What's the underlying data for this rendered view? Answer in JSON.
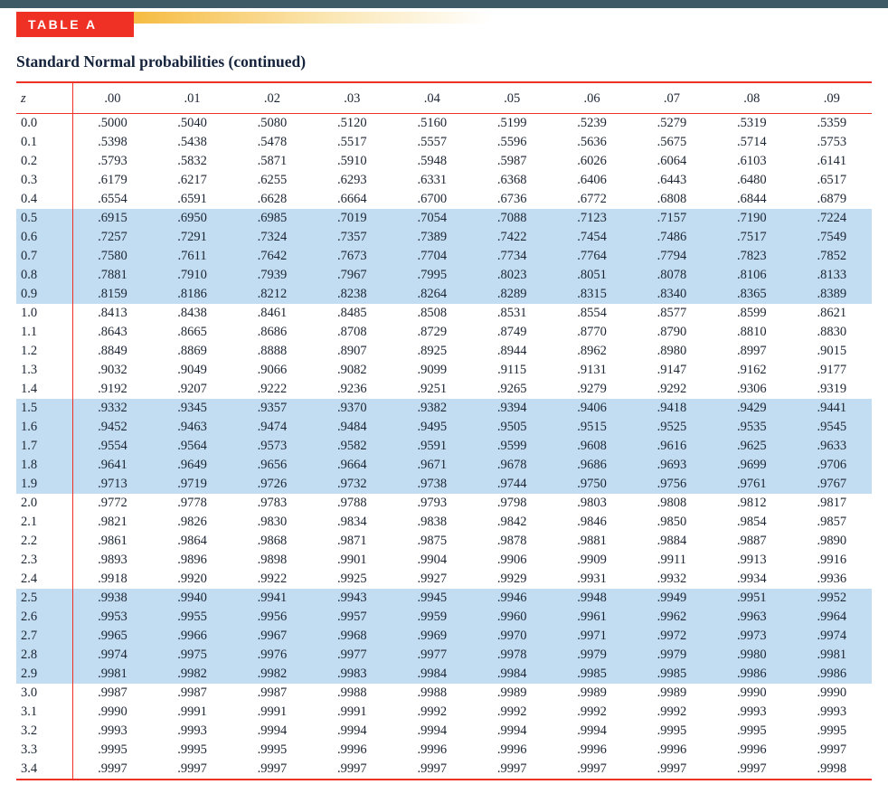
{
  "banner": {
    "label": "TABLE A"
  },
  "title": "Standard Normal probabilities (continued)",
  "colors": {
    "top_bar": "#3e5a66",
    "accent_red": "#ee3124",
    "band_blue": "#c2ddf1",
    "gradient_gold": "#f6bc42",
    "title_color": "#15233c",
    "table_text": "#1c2533"
  },
  "chart_data": {
    "type": "table",
    "title": "Standard Normal probabilities (continued)",
    "corner_label": "z",
    "columns": [
      ".00",
      ".01",
      ".02",
      ".03",
      ".04",
      ".05",
      ".06",
      ".07",
      ".08",
      ".09"
    ],
    "shaded_z_groups": [
      "0.5-0.9",
      "1.5-1.9",
      "2.5-2.9"
    ],
    "rows": [
      {
        "z": "0.0",
        "values": [
          ".5000",
          ".5040",
          ".5080",
          ".5120",
          ".5160",
          ".5199",
          ".5239",
          ".5279",
          ".5319",
          ".5359"
        ]
      },
      {
        "z": "0.1",
        "values": [
          ".5398",
          ".5438",
          ".5478",
          ".5517",
          ".5557",
          ".5596",
          ".5636",
          ".5675",
          ".5714",
          ".5753"
        ]
      },
      {
        "z": "0.2",
        "values": [
          ".5793",
          ".5832",
          ".5871",
          ".5910",
          ".5948",
          ".5987",
          ".6026",
          ".6064",
          ".6103",
          ".6141"
        ]
      },
      {
        "z": "0.3",
        "values": [
          ".6179",
          ".6217",
          ".6255",
          ".6293",
          ".6331",
          ".6368",
          ".6406",
          ".6443",
          ".6480",
          ".6517"
        ]
      },
      {
        "z": "0.4",
        "values": [
          ".6554",
          ".6591",
          ".6628",
          ".6664",
          ".6700",
          ".6736",
          ".6772",
          ".6808",
          ".6844",
          ".6879"
        ]
      },
      {
        "z": "0.5",
        "values": [
          ".6915",
          ".6950",
          ".6985",
          ".7019",
          ".7054",
          ".7088",
          ".7123",
          ".7157",
          ".7190",
          ".7224"
        ]
      },
      {
        "z": "0.6",
        "values": [
          ".7257",
          ".7291",
          ".7324",
          ".7357",
          ".7389",
          ".7422",
          ".7454",
          ".7486",
          ".7517",
          ".7549"
        ]
      },
      {
        "z": "0.7",
        "values": [
          ".7580",
          ".7611",
          ".7642",
          ".7673",
          ".7704",
          ".7734",
          ".7764",
          ".7794",
          ".7823",
          ".7852"
        ]
      },
      {
        "z": "0.8",
        "values": [
          ".7881",
          ".7910",
          ".7939",
          ".7967",
          ".7995",
          ".8023",
          ".8051",
          ".8078",
          ".8106",
          ".8133"
        ]
      },
      {
        "z": "0.9",
        "values": [
          ".8159",
          ".8186",
          ".8212",
          ".8238",
          ".8264",
          ".8289",
          ".8315",
          ".8340",
          ".8365",
          ".8389"
        ]
      },
      {
        "z": "1.0",
        "values": [
          ".8413",
          ".8438",
          ".8461",
          ".8485",
          ".8508",
          ".8531",
          ".8554",
          ".8577",
          ".8599",
          ".8621"
        ]
      },
      {
        "z": "1.1",
        "values": [
          ".8643",
          ".8665",
          ".8686",
          ".8708",
          ".8729",
          ".8749",
          ".8770",
          ".8790",
          ".8810",
          ".8830"
        ]
      },
      {
        "z": "1.2",
        "values": [
          ".8849",
          ".8869",
          ".8888",
          ".8907",
          ".8925",
          ".8944",
          ".8962",
          ".8980",
          ".8997",
          ".9015"
        ]
      },
      {
        "z": "1.3",
        "values": [
          ".9032",
          ".9049",
          ".9066",
          ".9082",
          ".9099",
          ".9115",
          ".9131",
          ".9147",
          ".9162",
          ".9177"
        ]
      },
      {
        "z": "1.4",
        "values": [
          ".9192",
          ".9207",
          ".9222",
          ".9236",
          ".9251",
          ".9265",
          ".9279",
          ".9292",
          ".9306",
          ".9319"
        ]
      },
      {
        "z": "1.5",
        "values": [
          ".9332",
          ".9345",
          ".9357",
          ".9370",
          ".9382",
          ".9394",
          ".9406",
          ".9418",
          ".9429",
          ".9441"
        ]
      },
      {
        "z": "1.6",
        "values": [
          ".9452",
          ".9463",
          ".9474",
          ".9484",
          ".9495",
          ".9505",
          ".9515",
          ".9525",
          ".9535",
          ".9545"
        ]
      },
      {
        "z": "1.7",
        "values": [
          ".9554",
          ".9564",
          ".9573",
          ".9582",
          ".9591",
          ".9599",
          ".9608",
          ".9616",
          ".9625",
          ".9633"
        ]
      },
      {
        "z": "1.8",
        "values": [
          ".9641",
          ".9649",
          ".9656",
          ".9664",
          ".9671",
          ".9678",
          ".9686",
          ".9693",
          ".9699",
          ".9706"
        ]
      },
      {
        "z": "1.9",
        "values": [
          ".9713",
          ".9719",
          ".9726",
          ".9732",
          ".9738",
          ".9744",
          ".9750",
          ".9756",
          ".9761",
          ".9767"
        ]
      },
      {
        "z": "2.0",
        "values": [
          ".9772",
          ".9778",
          ".9783",
          ".9788",
          ".9793",
          ".9798",
          ".9803",
          ".9808",
          ".9812",
          ".9817"
        ]
      },
      {
        "z": "2.1",
        "values": [
          ".9821",
          ".9826",
          ".9830",
          ".9834",
          ".9838",
          ".9842",
          ".9846",
          ".9850",
          ".9854",
          ".9857"
        ]
      },
      {
        "z": "2.2",
        "values": [
          ".9861",
          ".9864",
          ".9868",
          ".9871",
          ".9875",
          ".9878",
          ".9881",
          ".9884",
          ".9887",
          ".9890"
        ]
      },
      {
        "z": "2.3",
        "values": [
          ".9893",
          ".9896",
          ".9898",
          ".9901",
          ".9904",
          ".9906",
          ".9909",
          ".9911",
          ".9913",
          ".9916"
        ]
      },
      {
        "z": "2.4",
        "values": [
          ".9918",
          ".9920",
          ".9922",
          ".9925",
          ".9927",
          ".9929",
          ".9931",
          ".9932",
          ".9934",
          ".9936"
        ]
      },
      {
        "z": "2.5",
        "values": [
          ".9938",
          ".9940",
          ".9941",
          ".9943",
          ".9945",
          ".9946",
          ".9948",
          ".9949",
          ".9951",
          ".9952"
        ]
      },
      {
        "z": "2.6",
        "values": [
          ".9953",
          ".9955",
          ".9956",
          ".9957",
          ".9959",
          ".9960",
          ".9961",
          ".9962",
          ".9963",
          ".9964"
        ]
      },
      {
        "z": "2.7",
        "values": [
          ".9965",
          ".9966",
          ".9967",
          ".9968",
          ".9969",
          ".9970",
          ".9971",
          ".9972",
          ".9973",
          ".9974"
        ]
      },
      {
        "z": "2.8",
        "values": [
          ".9974",
          ".9975",
          ".9976",
          ".9977",
          ".9977",
          ".9978",
          ".9979",
          ".9979",
          ".9980",
          ".9981"
        ]
      },
      {
        "z": "2.9",
        "values": [
          ".9981",
          ".9982",
          ".9982",
          ".9983",
          ".9984",
          ".9984",
          ".9985",
          ".9985",
          ".9986",
          ".9986"
        ]
      },
      {
        "z": "3.0",
        "values": [
          ".9987",
          ".9987",
          ".9987",
          ".9988",
          ".9988",
          ".9989",
          ".9989",
          ".9989",
          ".9990",
          ".9990"
        ]
      },
      {
        "z": "3.1",
        "values": [
          ".9990",
          ".9991",
          ".9991",
          ".9991",
          ".9992",
          ".9992",
          ".9992",
          ".9992",
          ".9993",
          ".9993"
        ]
      },
      {
        "z": "3.2",
        "values": [
          ".9993",
          ".9993",
          ".9994",
          ".9994",
          ".9994",
          ".9994",
          ".9994",
          ".9995",
          ".9995",
          ".9995"
        ]
      },
      {
        "z": "3.3",
        "values": [
          ".9995",
          ".9995",
          ".9995",
          ".9996",
          ".9996",
          ".9996",
          ".9996",
          ".9996",
          ".9996",
          ".9997"
        ]
      },
      {
        "z": "3.4",
        "values": [
          ".9997",
          ".9997",
          ".9997",
          ".9997",
          ".9997",
          ".9997",
          ".9997",
          ".9997",
          ".9997",
          ".9998"
        ]
      }
    ]
  }
}
